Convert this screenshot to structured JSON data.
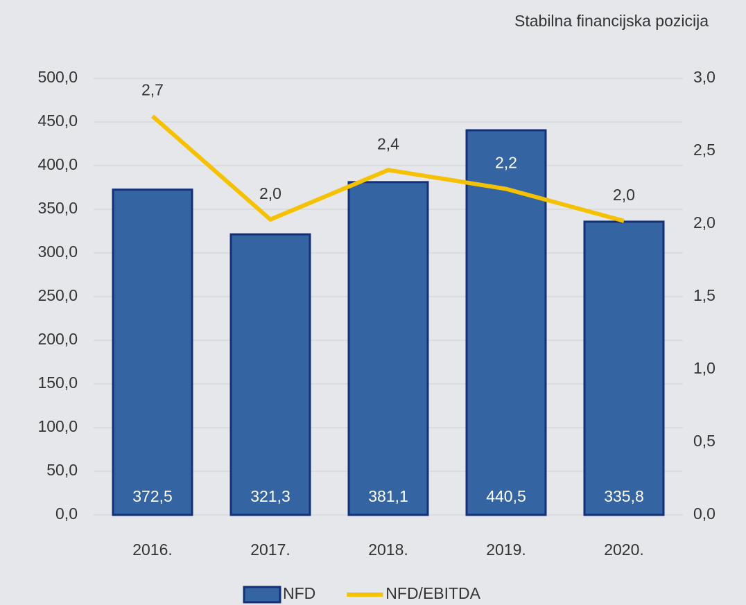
{
  "chart_data": {
    "type": "bar",
    "title": "Stabilna financijska pozicija",
    "categories": [
      "2016.",
      "2017.",
      "2018.",
      "2019.",
      "2020."
    ],
    "series": [
      {
        "name": "NFD",
        "type": "bar",
        "color": "#3564a3",
        "values": [
          372.5,
          321.3,
          381.1,
          440.5,
          335.8
        ],
        "value_labels": [
          "372,5",
          "321,3",
          "381,1",
          "440,5",
          "335,8"
        ]
      },
      {
        "name": "NFD/EBITDA",
        "type": "line",
        "axis": "y2",
        "color": "#f6c100",
        "values": [
          2.74,
          2.03,
          2.37,
          2.24,
          2.02
        ],
        "value_labels": [
          "2,7",
          "2,0",
          "2,4",
          "2,2",
          "2,0"
        ]
      }
    ],
    "ylim": [
      0,
      500
    ],
    "yticks": [
      {
        "value": 0,
        "label": "0,0"
      },
      {
        "value": 50,
        "label": "50,0"
      },
      {
        "value": 100,
        "label": "100,0"
      },
      {
        "value": 150,
        "label": "150,0"
      },
      {
        "value": 200,
        "label": "200,0"
      },
      {
        "value": 250,
        "label": "250,0"
      },
      {
        "value": 300,
        "label": "300,0"
      },
      {
        "value": 350,
        "label": "350,0"
      },
      {
        "value": 400,
        "label": "400,0"
      },
      {
        "value": 450,
        "label": "450,0"
      },
      {
        "value": 500,
        "label": "500,0"
      }
    ],
    "y2lim": [
      0,
      3
    ],
    "y2ticks": [
      {
        "value": 0,
        "label": "0,0"
      },
      {
        "value": 0.5,
        "label": "0,5"
      },
      {
        "value": 1,
        "label": "1,0"
      },
      {
        "value": 1.5,
        "label": "1,5"
      },
      {
        "value": 2,
        "label": "2,0"
      },
      {
        "value": 2.5,
        "label": "2,5"
      },
      {
        "value": 3,
        "label": "3,0"
      }
    ],
    "grid": true,
    "legend": "bottom"
  }
}
